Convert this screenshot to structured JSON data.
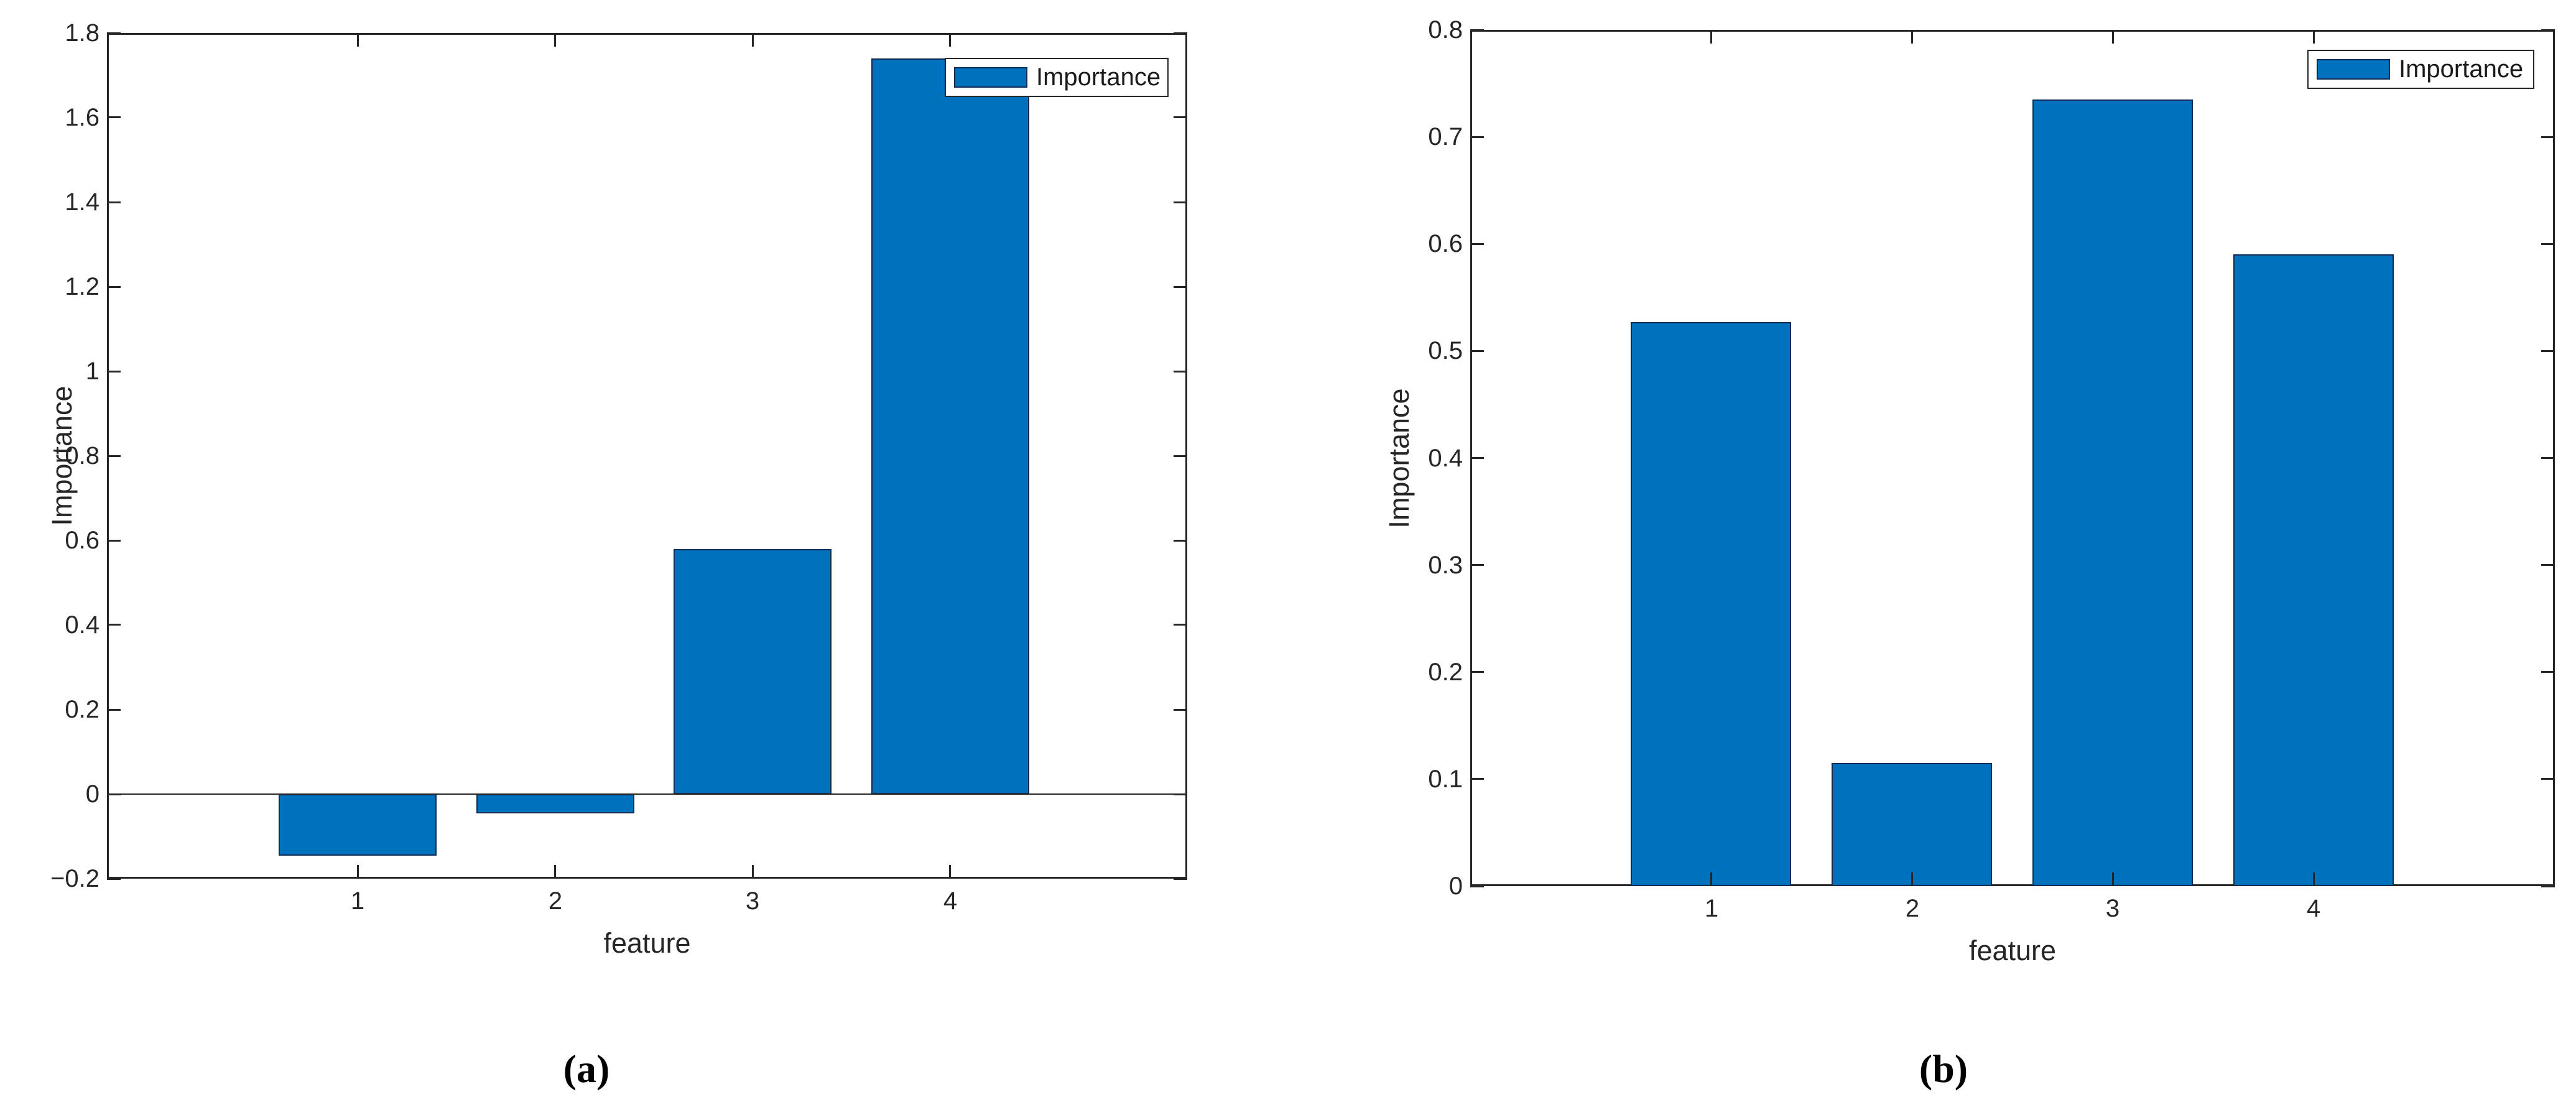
{
  "figure": {
    "background": "#FFFFFF",
    "bar_fill": "#0072BD",
    "bar_edge": "#0E2D55",
    "axis_color": "#262626",
    "text_color": "#262626",
    "legend_border": "#262626"
  },
  "chart_data": [
    {
      "id": "a",
      "type": "bar",
      "caption": "(a)",
      "xlabel": "feature",
      "ylabel": "Importance",
      "legend": {
        "label": "Importance",
        "position": "top-right"
      },
      "categories": [
        "1",
        "2",
        "3",
        "4"
      ],
      "x": [
        1,
        2,
        3,
        4
      ],
      "values": [
        -0.145,
        -0.045,
        0.58,
        1.74
      ],
      "bar_width": 0.8,
      "xlim": [
        -0.27,
        5.2
      ],
      "ylim": [
        -0.2,
        1.8
      ],
      "xticks": [
        1,
        2,
        3,
        4
      ],
      "xtick_labels": [
        "1",
        "2",
        "3",
        "4"
      ],
      "yticks": [
        -0.2,
        0,
        0.2,
        0.4,
        0.6,
        0.8,
        1,
        1.2,
        1.4,
        1.6,
        1.8
      ],
      "ytick_labels": [
        "−0.2",
        "0",
        "0.2",
        "0.4",
        "0.6",
        "0.8",
        "1",
        "1.2",
        "1.4",
        "1.6",
        "1.8"
      ],
      "grid": false,
      "box": true,
      "baseline": 0
    },
    {
      "id": "b",
      "type": "bar",
      "caption": "(b)",
      "xlabel": "feature",
      "ylabel": "Importance",
      "legend": {
        "label": "Importance",
        "position": "top-right"
      },
      "categories": [
        "1",
        "2",
        "3",
        "4"
      ],
      "x": [
        1,
        2,
        3,
        4
      ],
      "values": [
        0.527,
        0.115,
        0.735,
        0.59
      ],
      "bar_width": 0.8,
      "xlim": [
        -0.2,
        5.2
      ],
      "ylim": [
        0,
        0.8
      ],
      "xticks": [
        1,
        2,
        3,
        4
      ],
      "xtick_labels": [
        "1",
        "2",
        "3",
        "4"
      ],
      "yticks": [
        0,
        0.1,
        0.2,
        0.3,
        0.4,
        0.5,
        0.6,
        0.7,
        0.8
      ],
      "ytick_labels": [
        "0",
        "0.1",
        "0.2",
        "0.3",
        "0.4",
        "0.5",
        "0.6",
        "0.7",
        "0.8"
      ],
      "grid": false,
      "box": true,
      "baseline": 0
    }
  ]
}
